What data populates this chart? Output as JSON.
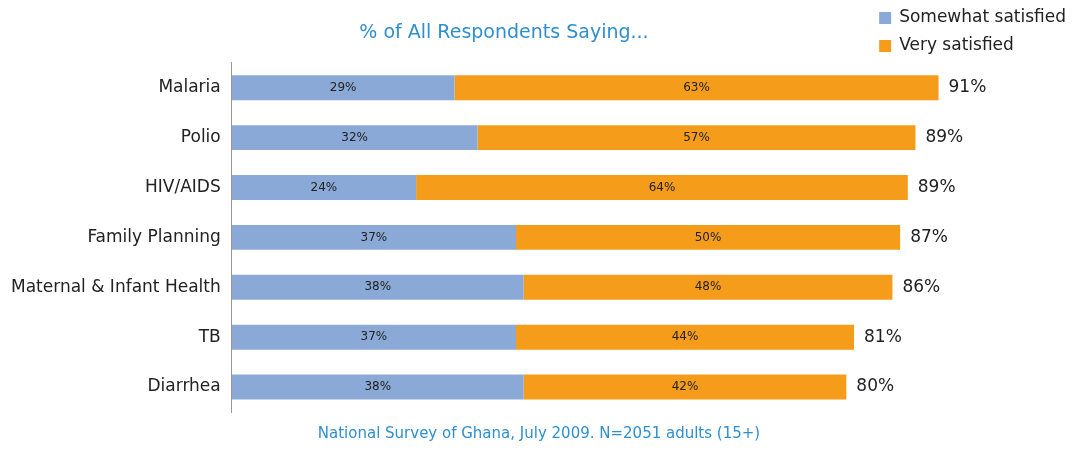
{
  "chart_data": {
    "type": "bar",
    "orientation": "horizontal",
    "stacked": true,
    "title": "% of All Respondents Saying...",
    "categories": [
      "Malaria",
      "Polio",
      "HIV/AIDS",
      "Family Planning",
      "Maternal & Infant Health",
      "TB",
      "Diarrhea"
    ],
    "series": [
      {
        "name": "Somewhat satisfied",
        "color": "#8aa9d6",
        "values": [
          29,
          32,
          24,
          37,
          38,
          37,
          38
        ],
        "value_labels": [
          "29%",
          "32%",
          "24%",
          "37%",
          "38%",
          "37%",
          "38%"
        ]
      },
      {
        "name": "Very satisfied",
        "color": "#f59c1a",
        "values": [
          63,
          57,
          64,
          50,
          48,
          44,
          42
        ],
        "value_labels": [
          "63%",
          "57%",
          "64%",
          "50%",
          "48%",
          "44%",
          "42%"
        ]
      }
    ],
    "totals": [
      "91%",
      "89%",
      "89%",
      "87%",
      "86%",
      "81%",
      "80%"
    ],
    "tick_labels": "y",
    "legend": "top right",
    "annotations": [
      "National Survey of Ghana, July 2009. N=2051 adults (15+)"
    ]
  }
}
